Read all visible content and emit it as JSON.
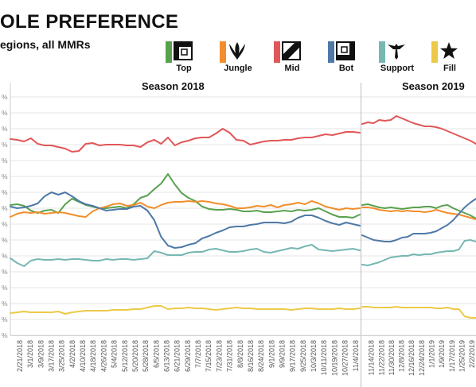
{
  "header": {
    "title": "OLE PREFERENCE",
    "subtitle": "egions, all MMRs"
  },
  "legend": [
    {
      "label": "Top",
      "color": "#59a14f",
      "icon": "top-lane-icon"
    },
    {
      "label": "Jungle",
      "color": "#f28e2b",
      "icon": "jungle-claw-icon"
    },
    {
      "label": "Mid",
      "color": "#e15759",
      "icon": "mid-lane-icon"
    },
    {
      "label": "Bot",
      "color": "#4e79a7",
      "icon": "bot-lane-icon"
    },
    {
      "label": "Support",
      "color": "#76b7b2",
      "icon": "support-wings-icon"
    },
    {
      "label": "Fill",
      "color": "#edc948",
      "icon": "star-icon"
    }
  ],
  "chart_data": {
    "type": "line",
    "panels": [
      {
        "name": "Season 2018",
        "x_ticks": [
          "2/21/2018",
          "3/1/2018",
          "3/9/2018",
          "3/17/2018",
          "3/25/2018",
          "4/2/2018",
          "4/10/2018",
          "4/18/2018",
          "4/26/2018",
          "5/4/2018",
          "5/12/2018",
          "5/20/2018",
          "5/28/2018",
          "6/5/2018",
          "6/13/2018",
          "6/21/2018",
          "6/29/2018",
          "7/7/2018",
          "7/15/2018",
          "7/23/2018",
          "7/31/2018",
          "8/8/2018",
          "8/16/2018",
          "8/24/2018",
          "9/1/2018",
          "9/9/2018",
          "9/17/2018",
          "9/25/2018",
          "10/3/2018",
          "10/11/2018",
          "10/19/2018",
          "10/27/2018",
          "11/4/2018"
        ]
      },
      {
        "name": "Season 2019",
        "x_ticks": [
          "11/14/2018",
          "11/22/2018",
          "11/30/2018",
          "12/8/2018",
          "12/16/2018",
          "12/24/2018",
          "1/1/2019",
          "1/9/2019",
          "1/17/2019",
          "1/25/2019",
          "2/2/2019"
        ]
      }
    ],
    "y_tick_labels": [
      "%",
      "%",
      "%",
      "%",
      "%",
      "%",
      "%",
      "%",
      "%",
      "%",
      "%",
      "%",
      "%",
      "%",
      "%",
      "%"
    ],
    "ylim": [
      0,
      30
    ],
    "grid": true,
    "series": [
      {
        "name": "Top",
        "color": "#59a14f",
        "s2018": [
          16.4,
          16.5,
          16.3,
          15.7,
          15.4,
          15.7,
          15.8,
          15.4,
          16.5,
          17.2,
          16.8,
          16.4,
          16.2,
          16.0,
          16.0,
          16.1,
          16.2,
          16.0,
          16.5,
          17.3,
          17.6,
          18.4,
          19.1,
          20.3,
          19.0,
          17.9,
          17.3,
          16.9,
          16.2,
          15.9,
          15.8,
          15.8,
          15.9,
          15.8,
          15.6,
          15.6,
          15.7,
          15.5,
          15.5,
          15.6,
          15.7,
          15.6,
          15.8,
          15.7,
          15.8,
          16.0,
          15.6,
          15.2,
          14.9,
          14.9,
          14.8,
          15.2
        ],
        "s2019": [
          16.4,
          16.5,
          16.3,
          16.1,
          16.0,
          16.1,
          16.0,
          15.9,
          16.0,
          16.1,
          16.1,
          16.2,
          16.2,
          16.0,
          16.3,
          16.4,
          16.0,
          15.7,
          15.4,
          15.1,
          14.7
        ]
      },
      {
        "name": "Jungle",
        "color": "#f28e2b",
        "s2018": [
          14.9,
          15.3,
          15.5,
          15.4,
          15.5,
          15.3,
          15.4,
          15.5,
          15.4,
          15.2,
          15.0,
          14.9,
          15.6,
          16.0,
          16.2,
          16.5,
          16.6,
          16.3,
          16.4,
          16.7,
          16.2,
          16.0,
          16.4,
          16.7,
          16.8,
          16.8,
          16.9,
          16.8,
          16.9,
          16.8,
          16.6,
          16.5,
          16.3,
          16.0,
          16.0,
          16.1,
          16.3,
          16.2,
          16.4,
          16.1,
          16.4,
          16.5,
          16.7,
          16.5,
          16.9,
          16.6,
          16.2,
          16.0,
          15.8,
          16.0,
          15.9,
          16.0
        ],
        "s2019": [
          16.1,
          16.1,
          16.0,
          15.8,
          15.7,
          15.6,
          15.7,
          15.6,
          15.7,
          15.6,
          15.6,
          15.5,
          15.6,
          15.8,
          15.6,
          15.4,
          15.3,
          15.2,
          15.0,
          14.8,
          14.6
        ]
      },
      {
        "name": "Mid",
        "color": "#e15759",
        "s2018": [
          24.7,
          24.6,
          24.4,
          24.8,
          24.1,
          23.9,
          23.9,
          23.7,
          23.5,
          23.1,
          23.2,
          24.1,
          24.2,
          23.9,
          24.0,
          24.0,
          24.0,
          23.9,
          23.9,
          23.7,
          24.3,
          24.6,
          24.1,
          24.9,
          23.9,
          24.3,
          24.5,
          24.8,
          24.9,
          24.9,
          25.4,
          26.0,
          25.5,
          24.6,
          24.5,
          24.0,
          24.2,
          24.4,
          24.5,
          24.5,
          24.6,
          24.6,
          24.8,
          24.9,
          24.9,
          25.1,
          25.3,
          25.2,
          25.4,
          25.6,
          25.6,
          25.5
        ],
        "s2019": [
          26.6,
          26.8,
          26.7,
          27.1,
          27.0,
          27.1,
          27.6,
          27.3,
          27.0,
          26.7,
          26.5,
          26.3,
          26.3,
          26.2,
          26.0,
          25.7,
          25.4,
          25.1,
          24.8,
          24.5,
          24.1
        ]
      },
      {
        "name": "Bot",
        "color": "#4e79a7",
        "s2018": [
          16.2,
          16.0,
          16.1,
          16.3,
          16.6,
          17.5,
          18.0,
          17.7,
          18.0,
          17.5,
          16.9,
          16.5,
          16.3,
          16.0,
          15.7,
          15.8,
          15.9,
          15.9,
          16.2,
          16.3,
          15.7,
          14.5,
          12.4,
          11.3,
          11.0,
          11.1,
          11.4,
          11.6,
          12.2,
          12.5,
          12.9,
          13.2,
          13.6,
          13.7,
          13.7,
          13.9,
          14.0,
          14.2,
          14.2,
          14.2,
          14.1,
          14.3,
          14.8,
          15.1,
          15.1,
          14.8,
          14.4,
          14.1,
          13.9,
          14.2,
          14.0,
          13.8
        ],
        "s2019": [
          12.6,
          12.3,
          12.0,
          11.9,
          11.8,
          11.8,
          12.0,
          12.3,
          12.4,
          12.8,
          12.8,
          12.8,
          12.9,
          13.1,
          13.5,
          13.9,
          14.5,
          15.3,
          16.1,
          16.7,
          17.2
        ]
      },
      {
        "name": "Support",
        "color": "#76b7b2",
        "s2018": [
          9.7,
          9.1,
          8.7,
          9.4,
          9.6,
          9.5,
          9.5,
          9.6,
          9.5,
          9.6,
          9.6,
          9.5,
          9.4,
          9.4,
          9.6,
          9.5,
          9.6,
          9.6,
          9.5,
          9.6,
          9.7,
          10.6,
          10.4,
          10.1,
          10.1,
          10.1,
          10.4,
          10.5,
          10.5,
          10.8,
          10.9,
          10.7,
          10.5,
          10.5,
          10.6,
          10.8,
          10.9,
          10.5,
          10.4,
          10.6,
          10.8,
          11.0,
          10.9,
          11.2,
          11.4,
          10.8,
          10.7,
          10.6,
          10.7,
          10.8,
          10.9,
          10.7
        ],
        "s2019": [
          8.9,
          8.8,
          9.0,
          9.2,
          9.5,
          9.8,
          9.9,
          10.0,
          10.0,
          10.2,
          10.1,
          10.2,
          10.2,
          10.4,
          10.5,
          10.6,
          10.6,
          10.8,
          11.9,
          12.0,
          11.8
        ]
      },
      {
        "name": "Fill",
        "color": "#edc948",
        "s2018": [
          2.8,
          2.9,
          3.0,
          2.9,
          2.9,
          2.9,
          2.9,
          3.0,
          2.7,
          2.9,
          3.0,
          3.1,
          3.1,
          3.1,
          3.1,
          3.2,
          3.2,
          3.2,
          3.3,
          3.3,
          3.5,
          3.7,
          3.7,
          3.3,
          3.4,
          3.4,
          3.5,
          3.4,
          3.4,
          3.3,
          3.2,
          3.3,
          3.4,
          3.5,
          3.4,
          3.4,
          3.3,
          3.3,
          3.3,
          3.3,
          3.3,
          3.2,
          3.3,
          3.4,
          3.4,
          3.3,
          3.3,
          3.3,
          3.4,
          3.3,
          3.3,
          3.4
        ],
        "s2019": [
          3.6,
          3.6,
          3.5,
          3.5,
          3.5,
          3.5,
          3.6,
          3.5,
          3.5,
          3.5,
          3.5,
          3.5,
          3.5,
          3.4,
          3.4,
          3.5,
          3.3,
          3.3,
          2.4,
          2.2,
          2.2
        ]
      }
    ]
  }
}
